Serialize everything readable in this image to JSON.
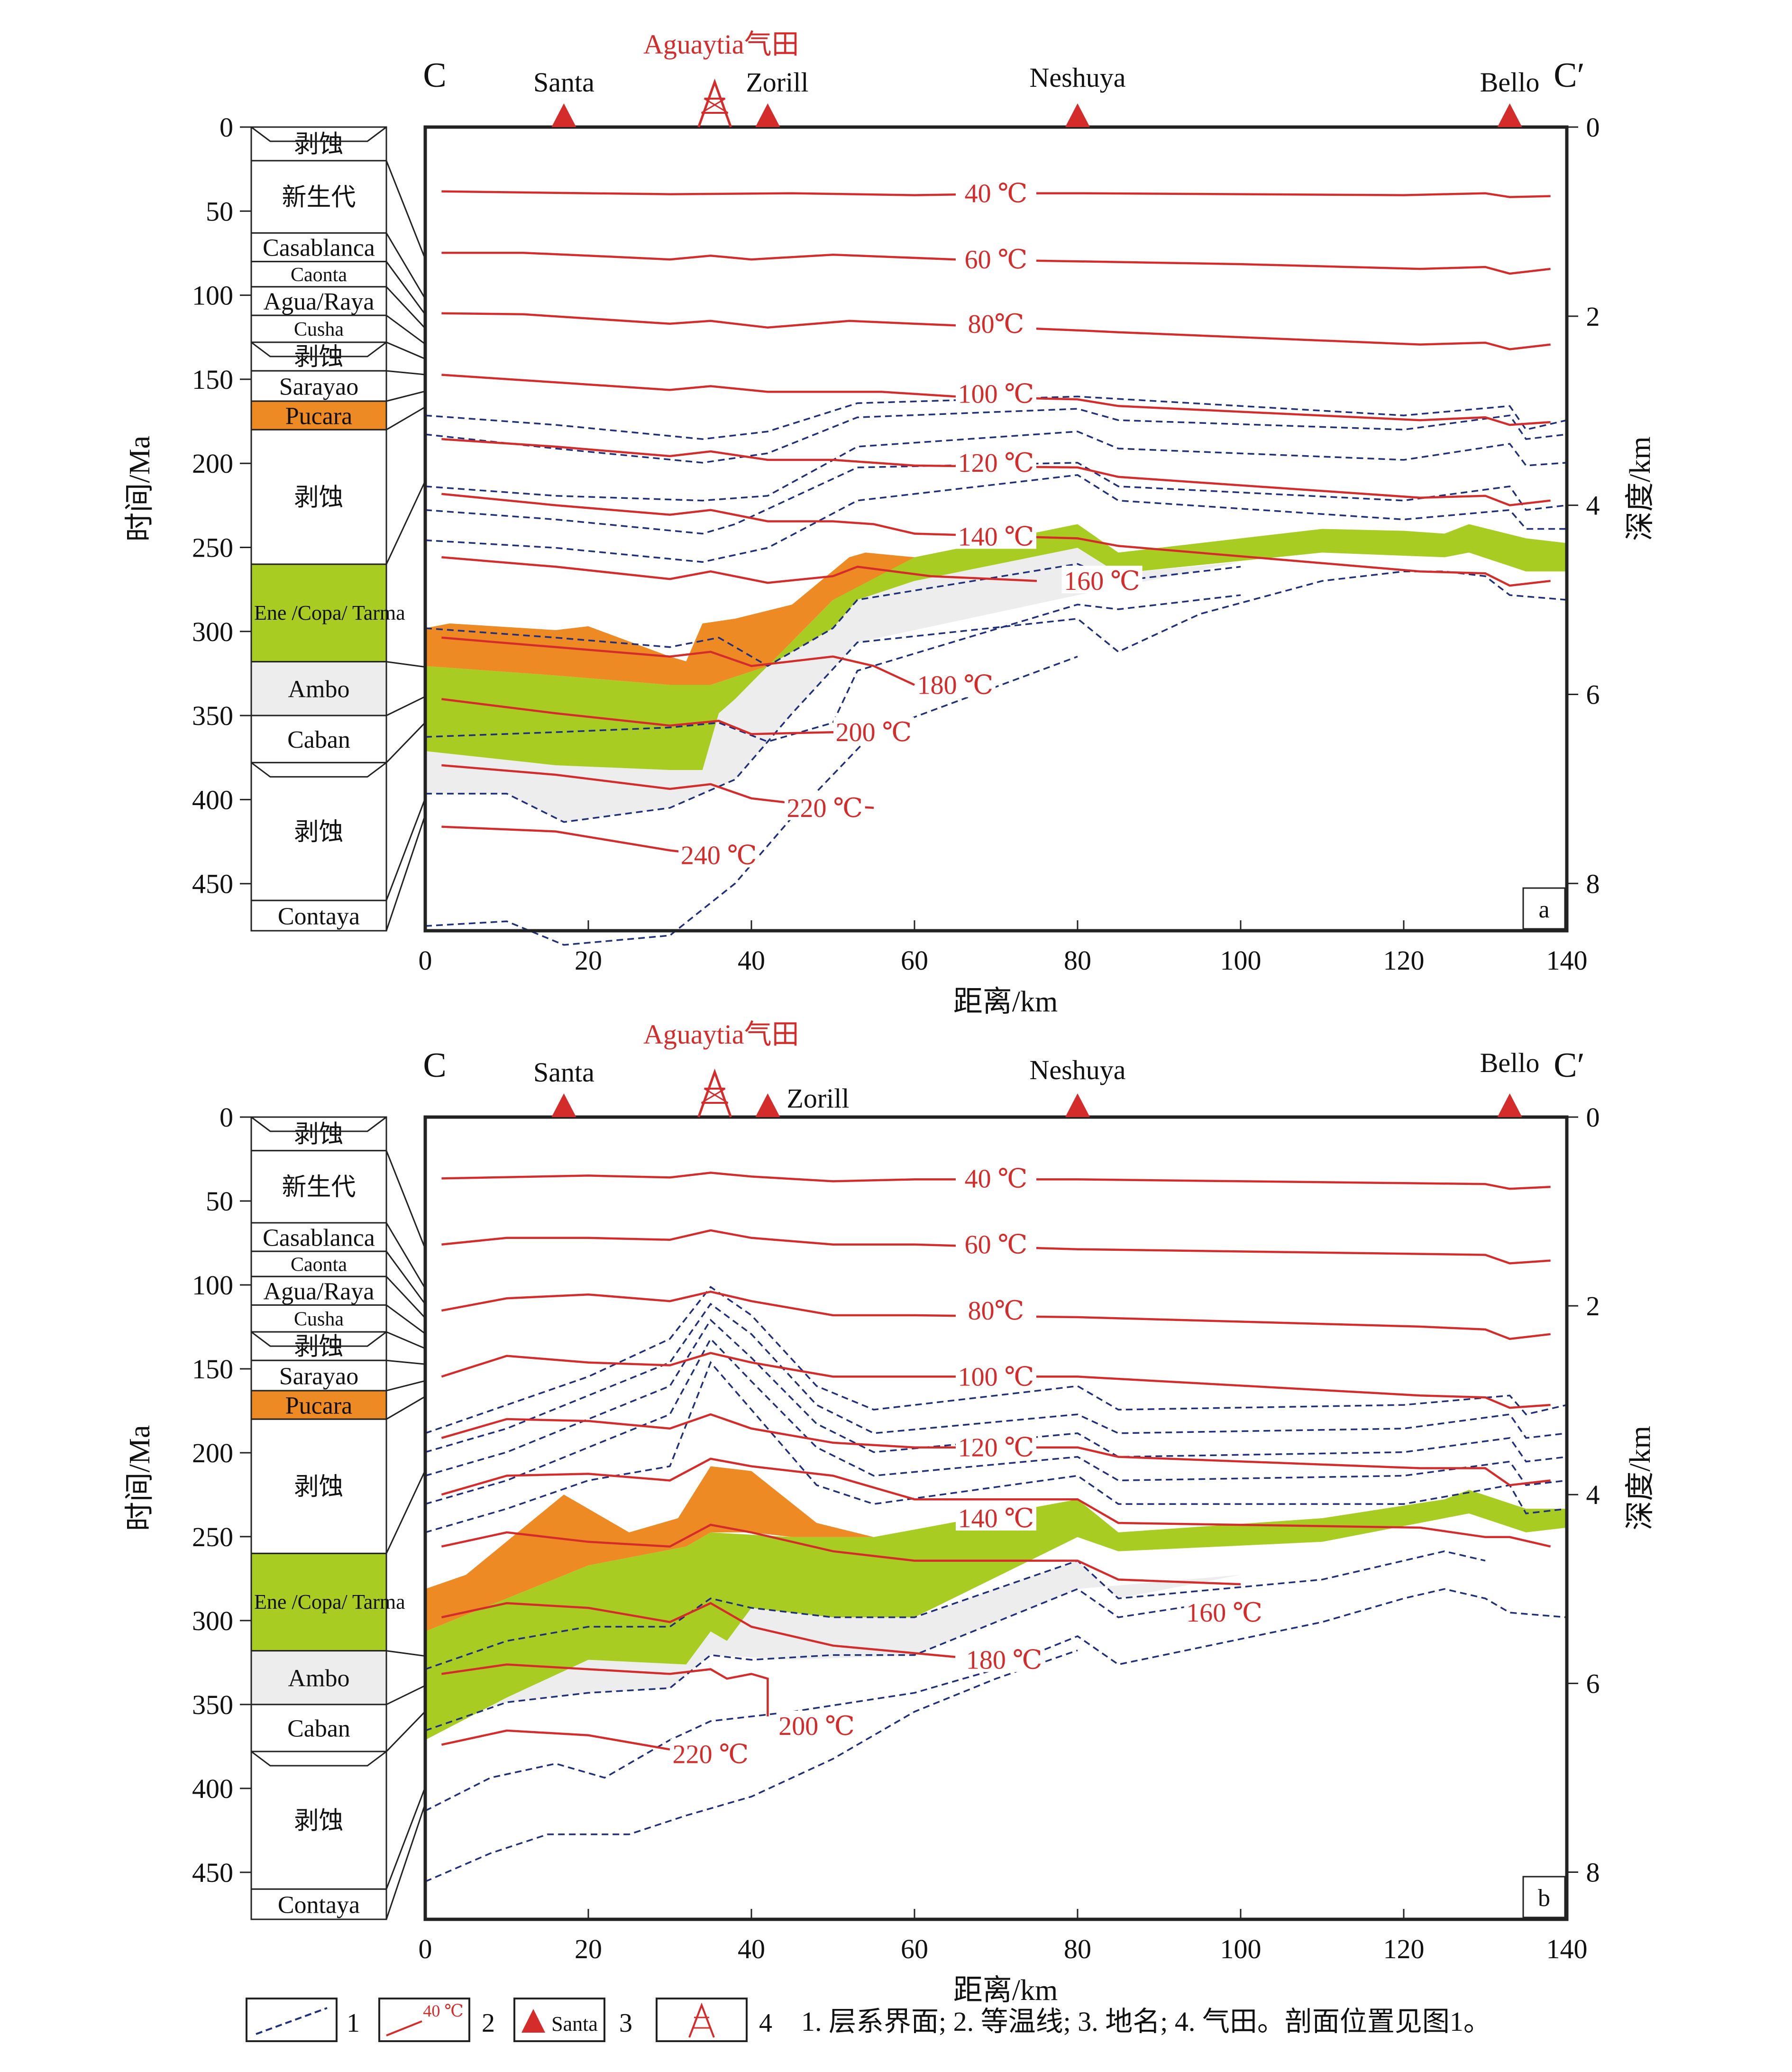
{
  "colors": {
    "isotherm": "#d42b2b",
    "horizon": "#1f2f7a",
    "pucara": "#ee8a24",
    "ene": "#a8cc22",
    "ambo": "#ededed",
    "frame": "#222222"
  },
  "panels": [
    {
      "letter": "a",
      "section_start": "C",
      "section_end": "C′",
      "gasfield_label": "Aguaytia气田",
      "places": [
        "Santa",
        "Zorill",
        "Neshuya",
        "Bello"
      ],
      "left_axis_label": "时间/Ma",
      "right_axis_label": "深度/km",
      "x_axis_label": "距离/km",
      "time_ticks": [
        "0",
        "50",
        "100",
        "150",
        "200",
        "250",
        "300",
        "350",
        "400",
        "450"
      ],
      "depth_ticks": [
        "0",
        "2",
        "4",
        "6",
        "8"
      ],
      "x_ticks": [
        "0",
        "20",
        "40",
        "60",
        "80",
        "100",
        "120",
        "140"
      ],
      "isotherm_labels": [
        "40 ℃",
        "60 ℃",
        "80℃",
        "100 ℃",
        "120 ℃",
        "140 ℃",
        "160 ℃",
        "180 ℃",
        "200 ℃",
        "220 ℃",
        "240 ℃"
      ]
    },
    {
      "letter": "b",
      "section_start": "C",
      "section_end": "C′",
      "gasfield_label": "Aguaytia气田",
      "places": [
        "Santa",
        "Zorill",
        "Neshuya",
        "Bello"
      ],
      "left_axis_label": "时间/Ma",
      "right_axis_label": "深度/km",
      "x_axis_label": "距离/km",
      "time_ticks": [
        "0",
        "50",
        "100",
        "150",
        "200",
        "250",
        "300",
        "350",
        "400",
        "450"
      ],
      "depth_ticks": [
        "0",
        "2",
        "4",
        "6",
        "8"
      ],
      "x_ticks": [
        "0",
        "20",
        "40",
        "60",
        "80",
        "100",
        "120",
        "140"
      ],
      "isotherm_labels": [
        "40 ℃",
        "60 ℃",
        "80℃",
        "100 ℃",
        "120 ℃",
        "140 ℃",
        "160 ℃",
        "180 ℃",
        "200 ℃",
        "220 ℃"
      ]
    }
  ],
  "strat_column": [
    {
      "name": "剥蚀",
      "top": 0,
      "bottom": 20
    },
    {
      "name": "新生代",
      "top": 20,
      "bottom": 63
    },
    {
      "name": "Casablanca",
      "top": 63,
      "bottom": 80
    },
    {
      "name": "Caonta",
      "top": 80,
      "bottom": 95
    },
    {
      "name": "Agua/Raya",
      "top": 95,
      "bottom": 112
    },
    {
      "name": "Cusha",
      "top": 112,
      "bottom": 128
    },
    {
      "name": "剥蚀",
      "top": 128,
      "bottom": 145
    },
    {
      "name": "Sarayao",
      "top": 145,
      "bottom": 163
    },
    {
      "name": "Pucara",
      "top": 163,
      "bottom": 180
    },
    {
      "name": "剥蚀",
      "top": 180,
      "bottom": 260
    },
    {
      "name": "Ene /Copa/ Tarma",
      "top": 260,
      "bottom": 318
    },
    {
      "name": "Ambo",
      "top": 318,
      "bottom": 350
    },
    {
      "name": "Caban",
      "top": 350,
      "bottom": 378
    },
    {
      "name": "剥蚀",
      "top": 378,
      "bottom": 460
    },
    {
      "name": "Contaya",
      "top": 460,
      "bottom": 478
    }
  ],
  "legend": {
    "items": [
      "1",
      "2",
      "3",
      "4"
    ],
    "sample_isotherm": "40 ℃",
    "sample_place": "Santa",
    "caption": "1. 层系界面; 2. 等温线; 3. 地名; 4. 气田。剖面位置见图1。"
  }
}
